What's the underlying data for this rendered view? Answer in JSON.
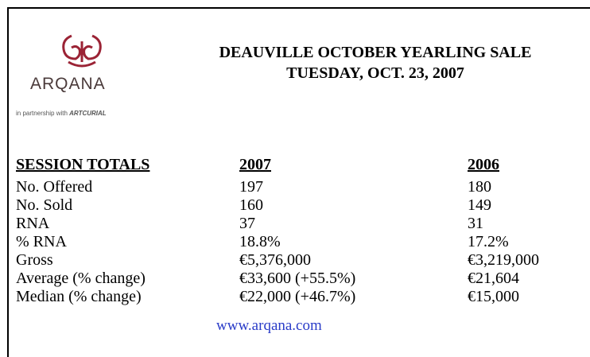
{
  "logo": {
    "name": "ARQANA",
    "partner_prefix": "in partnership with",
    "partner": "ARTCURIAL"
  },
  "header": {
    "title": "DEAUVILLE OCTOBER YEARLING SALE",
    "subtitle": "TUESDAY, OCT. 23, 2007"
  },
  "table": {
    "columns": [
      "SESSION TOTALS",
      "2007",
      "2006"
    ],
    "rows": [
      [
        "No. Offered",
        "197",
        "180"
      ],
      [
        "No. Sold",
        "160",
        "149"
      ],
      [
        "RNA",
        "37",
        "31"
      ],
      [
        "% RNA",
        "18.8%",
        "17.2%"
      ],
      [
        "Gross",
        "€5,376,000",
        "€3,219,000"
      ],
      [
        "Average (% change)",
        "€33,600 (+55.5%)",
        "€21,604"
      ],
      [
        "Median (% change)",
        "€22,000 (+46.7%)",
        "€15,000"
      ]
    ]
  },
  "footer": {
    "link": "www.arqana.com"
  }
}
